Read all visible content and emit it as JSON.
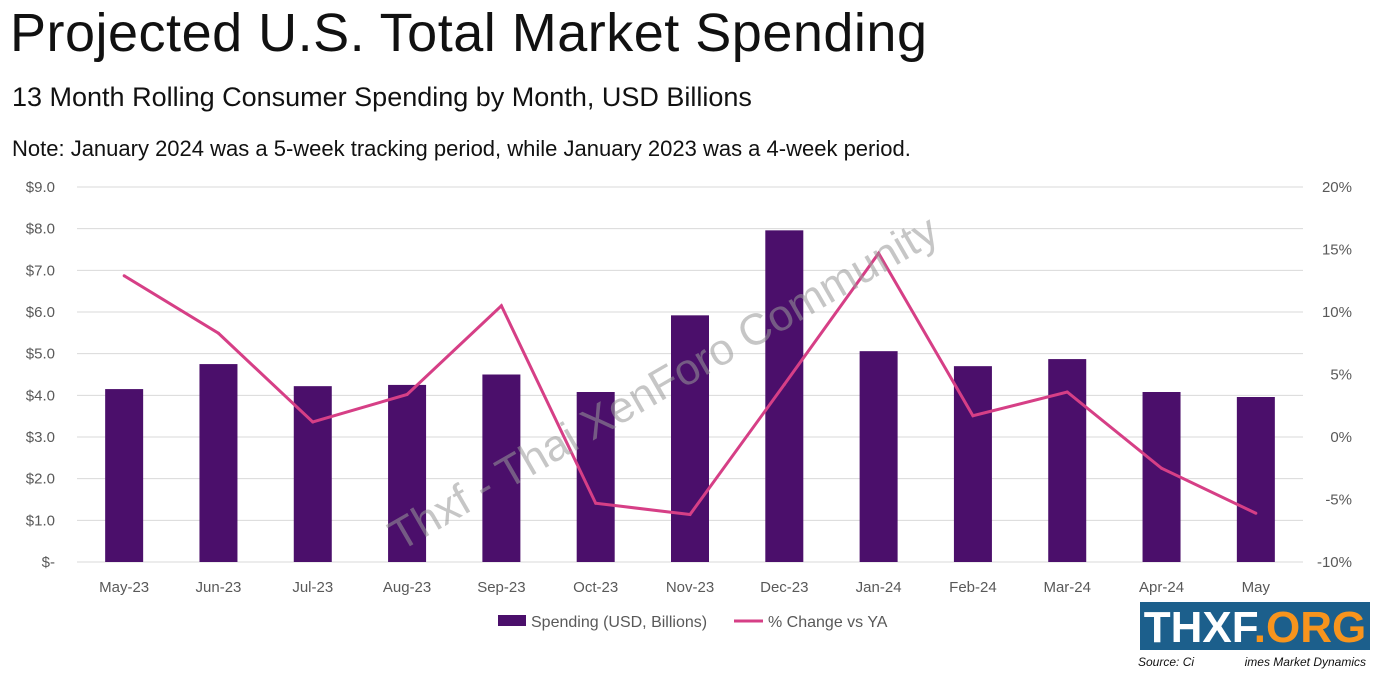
{
  "title": "Projected U.S. Total Market Spending",
  "subtitle": "13 Month Rolling Consumer Spending by Month, USD Billions",
  "note": "Note: January 2024 was a 5-week tracking period, while January 2023 was a 4-week period.",
  "source_left": "Source: Ci",
  "source_right": "imes Market Dynamics",
  "watermark": "Thxf - Thai XenForo Community",
  "banner": {
    "left": "THXF",
    "right": ".ORG"
  },
  "colors": {
    "bar": "#4b0f6b",
    "line": "#d63f86",
    "banner": "#1c5f8c",
    "banner_accent": "#f7941d"
  },
  "chart_data": {
    "type": "bar+line",
    "categories": [
      "May-23",
      "Jun-23",
      "Jul-23",
      "Aug-23",
      "Sep-23",
      "Oct-23",
      "Nov-23",
      "Dec-23",
      "Jan-24",
      "Feb-24",
      "Mar-24",
      "Apr-24",
      "May-24"
    ],
    "series": [
      {
        "name": "Spending (USD, Billions)",
        "type": "bar",
        "axis": "left",
        "values": [
          4.15,
          4.75,
          4.22,
          4.25,
          4.5,
          4.08,
          5.92,
          7.96,
          5.06,
          4.7,
          4.87,
          4.08,
          3.96
        ]
      },
      {
        "name": "% Change vs YA",
        "type": "line",
        "axis": "right",
        "values": [
          12.9,
          8.3,
          1.2,
          3.4,
          10.5,
          -5.3,
          -6.2,
          4.2,
          14.7,
          1.7,
          3.6,
          -2.5,
          -6.1
        ]
      }
    ],
    "left_axis": {
      "ylim": [
        0,
        9
      ],
      "ticks": [
        "$-",
        "$1.0",
        "$2.0",
        "$3.0",
        "$4.0",
        "$5.0",
        "$6.0",
        "$7.0",
        "$8.0",
        "$9.0"
      ]
    },
    "right_axis": {
      "ylim": [
        -10,
        20
      ],
      "ticks": [
        "-10%",
        "-5%",
        "0%",
        "5%",
        "10%",
        "15%",
        "20%"
      ]
    },
    "category_labels": [
      "May-23",
      "Jun-23",
      "Jul-23",
      "Aug-23",
      "Sep-23",
      "Oct-23",
      "Nov-23",
      "Dec-23",
      "Jan-24",
      "Feb-24",
      "Mar-24",
      "Apr-24",
      "May"
    ],
    "grid": true,
    "legend": "bottom"
  }
}
